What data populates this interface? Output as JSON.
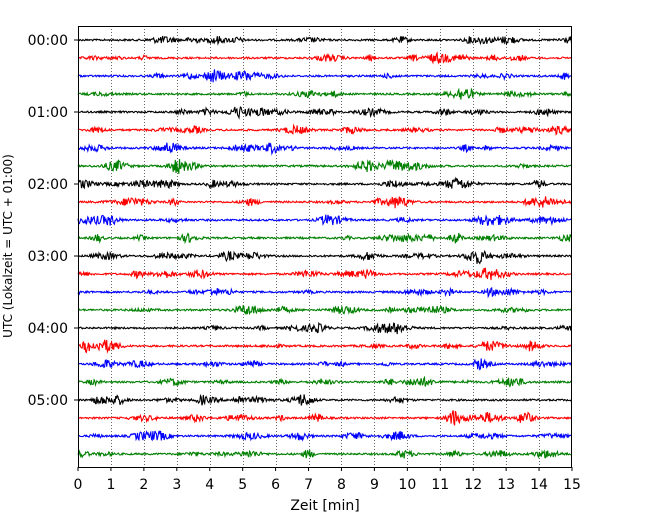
{
  "chart_data": {
    "type": "line",
    "title": "",
    "xlabel": "Zeit  [min]",
    "ylabel": "UTC (Lokalzeit = UTC + 01:00)",
    "xlim": [
      0,
      15
    ],
    "xticks": [
      0,
      1,
      2,
      3,
      4,
      5,
      6,
      7,
      8,
      9,
      10,
      11,
      12,
      13,
      14,
      15
    ],
    "yticks": [
      "00:00",
      "01:00",
      "02:00",
      "03:00",
      "04:00",
      "05:00"
    ],
    "grid": "vertical dotted lines at each minute",
    "trace_interval_minutes": 15,
    "trace_count": 24,
    "colors": [
      "#000000",
      "#ff0000",
      "#0000ff",
      "#008000"
    ],
    "series": [
      {
        "start": "00:00",
        "color": "#000000"
      },
      {
        "start": "00:15",
        "color": "#ff0000"
      },
      {
        "start": "00:30",
        "color": "#0000ff"
      },
      {
        "start": "00:45",
        "color": "#008000"
      },
      {
        "start": "01:00",
        "color": "#000000"
      },
      {
        "start": "01:15",
        "color": "#ff0000"
      },
      {
        "start": "01:30",
        "color": "#0000ff"
      },
      {
        "start": "01:45",
        "color": "#008000"
      },
      {
        "start": "02:00",
        "color": "#000000"
      },
      {
        "start": "02:15",
        "color": "#ff0000"
      },
      {
        "start": "02:30",
        "color": "#0000ff"
      },
      {
        "start": "02:45",
        "color": "#008000"
      },
      {
        "start": "03:00",
        "color": "#000000"
      },
      {
        "start": "03:15",
        "color": "#ff0000"
      },
      {
        "start": "03:30",
        "color": "#0000ff"
      },
      {
        "start": "03:45",
        "color": "#008000"
      },
      {
        "start": "04:00",
        "color": "#000000"
      },
      {
        "start": "04:15",
        "color": "#ff0000"
      },
      {
        "start": "04:30",
        "color": "#0000ff"
      },
      {
        "start": "04:45",
        "color": "#008000"
      },
      {
        "start": "05:00",
        "color": "#000000"
      },
      {
        "start": "05:15",
        "color": "#ff0000"
      },
      {
        "start": "05:30",
        "color": "#0000ff"
      },
      {
        "start": "05:45",
        "color": "#008000"
      }
    ]
  }
}
